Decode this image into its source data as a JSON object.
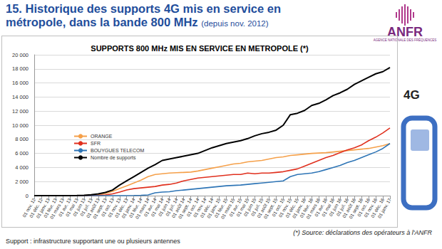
{
  "page": {
    "heading": "15. Historique des supports 4G mis en service en métropole, dans la bande 800 MHz",
    "heading_note": "(depuis nov. 2012)",
    "logo": "ANFR",
    "logo_subtitle": "AGENCE NATIONALE DES FRÉQUENCES",
    "badge": "4G",
    "footnote": "Support : infrastructure supportant une ou plusieurs antennes",
    "source": "(*) Source: déclarations des opérateurs à l'ANFR"
  },
  "chart_data": {
    "type": "line",
    "title": "SUPPORTS 800 MHz MIS EN SERVICE EN METROPOLE (*)",
    "categories": [
      "01 nov. 12",
      "01 déc. 12",
      "01 janv. 13",
      "01 févr. 13",
      "01 mars 13",
      "01 avr. 13",
      "01 mai 13",
      "01 juin 13",
      "01 juil. 13",
      "01 août 13",
      "01 sept. 13",
      "01 oct. 13",
      "01 nov. 13",
      "01 déc. 13",
      "01 janv. 14",
      "01 févr. 14",
      "01 mars 14",
      "01 avr. 14",
      "01 mai 14",
      "01 juin 14",
      "01 juil. 14",
      "01 août 14",
      "01 sept. 14",
      "01 oct. 14",
      "01 nov. 14",
      "01 déc. 14",
      "01 janv. 15",
      "01 févr. 15",
      "01 mars 15",
      "01 avr. 15",
      "01 mai 15",
      "01 juin 15",
      "01 juil. 15",
      "01 août 15",
      "01 sept. 15",
      "01 oct. 15",
      "01 nov. 15",
      "01 déc. 15",
      "01 janv. 16",
      "01 févr. 16",
      "01 mars 16",
      "01 avr. 16",
      "01 mai 16",
      "01 juin 16",
      "01 juil. 16",
      "01 août 16",
      "01 sept. 16",
      "01 oct. 16",
      "01 nov. 16",
      "01 déc. 16",
      "01 janv. 17"
    ],
    "series": [
      {
        "name": "ORANGE",
        "color": "#f5a04a",
        "values": [
          0,
          0,
          0,
          0,
          0,
          5,
          15,
          30,
          60,
          150,
          300,
          600,
          1000,
          1400,
          1800,
          2200,
          2700,
          3000,
          3100,
          3200,
          3250,
          3300,
          3350,
          3500,
          3700,
          3900,
          4100,
          4300,
          4500,
          4600,
          4800,
          4900,
          5000,
          5200,
          5400,
          5500,
          5700,
          5800,
          5900,
          6000,
          6050,
          6100,
          6200,
          6300,
          6400,
          6500,
          6600,
          6700,
          6900,
          7100,
          7400
        ]
      },
      {
        "name": "SFR",
        "color": "#e0301e",
        "values": [
          0,
          0,
          0,
          0,
          0,
          0,
          5,
          10,
          20,
          40,
          100,
          250,
          500,
          800,
          1000,
          1100,
          1200,
          1300,
          1500,
          1600,
          1800,
          2100,
          2300,
          2500,
          2600,
          2700,
          2800,
          2900,
          3000,
          3000,
          3200,
          3100,
          3200,
          3200,
          3300,
          3400,
          3600,
          3800,
          4200,
          4600,
          5000,
          5400,
          5700,
          6100,
          6500,
          6800,
          7200,
          7800,
          8300,
          8900,
          9600
        ]
      },
      {
        "name": "BOUYGUES TELECOM",
        "color": "#2e75b6",
        "values": [
          0,
          0,
          0,
          0,
          0,
          0,
          0,
          0,
          0,
          0,
          0,
          0,
          0,
          0,
          20,
          50,
          100,
          400,
          500,
          550,
          700,
          800,
          900,
          1000,
          1100,
          1200,
          1300,
          1400,
          1450,
          1500,
          1600,
          1700,
          1800,
          1900,
          2000,
          2100,
          2700,
          3000,
          3100,
          3200,
          3400,
          3700,
          4000,
          4300,
          4700,
          5000,
          5400,
          5800,
          6200,
          6700,
          7400
        ]
      },
      {
        "name": "Nombre de supports",
        "color": "#000000",
        "values": [
          0,
          0,
          0,
          0,
          0,
          10,
          30,
          60,
          120,
          250,
          450,
          800,
          1500,
          2100,
          2700,
          3300,
          3900,
          4400,
          5000,
          5200,
          5400,
          5600,
          5800,
          6000,
          6400,
          6800,
          7100,
          7400,
          7600,
          7800,
          8100,
          8500,
          8800,
          9000,
          9300,
          10000,
          11500,
          11700,
          12100,
          12800,
          13100,
          13600,
          14200,
          14600,
          15100,
          15800,
          16300,
          16800,
          17300,
          17600,
          18200
        ]
      }
    ],
    "ylim": [
      0,
      20000
    ],
    "yticks": [
      0,
      {
        "value": 2000,
        "label": "2 000"
      },
      {
        "value": 4000,
        "label": "4 000"
      },
      {
        "value": 6000,
        "label": "6 000"
      },
      {
        "value": 8000,
        "label": "8 000"
      },
      {
        "value": 10000,
        "label": "10 000"
      },
      {
        "value": 12000,
        "label": "12 000"
      },
      {
        "value": 14000,
        "label": "14 000"
      },
      {
        "value": 16000,
        "label": "16 000"
      },
      {
        "value": 18000,
        "label": "18 000"
      },
      {
        "value": 20000,
        "label": "20 000"
      }
    ],
    "grid": true,
    "legend": "left"
  }
}
